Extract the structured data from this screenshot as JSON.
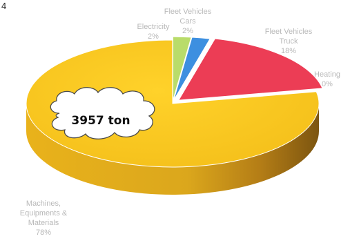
{
  "figure": {
    "corner_text": "4"
  },
  "chart_data": {
    "type": "pie",
    "style": "3d-exploded",
    "slices": [
      {
        "label_lines": [
          "Electricity",
          "2%"
        ],
        "value": 2,
        "color": "#b9dc6a"
      },
      {
        "label_lines": [
          "Fleet Vehicles",
          "Cars",
          "2%"
        ],
        "value": 2,
        "color": "#3d8fe0"
      },
      {
        "label_lines": [
          "Fleet Vehicles",
          "Truck",
          "18%"
        ],
        "value": 18,
        "color": "#ec3d55"
      },
      {
        "label_lines": [
          "Heating",
          "0%"
        ],
        "value": 0,
        "color": "#f3c21d"
      },
      {
        "label_lines": [
          "Machines,",
          "Equipments &",
          "Materials",
          "78%"
        ],
        "value": 78,
        "color": "#f6c31d"
      }
    ],
    "annotation": "3957 ton",
    "legend": "none"
  }
}
